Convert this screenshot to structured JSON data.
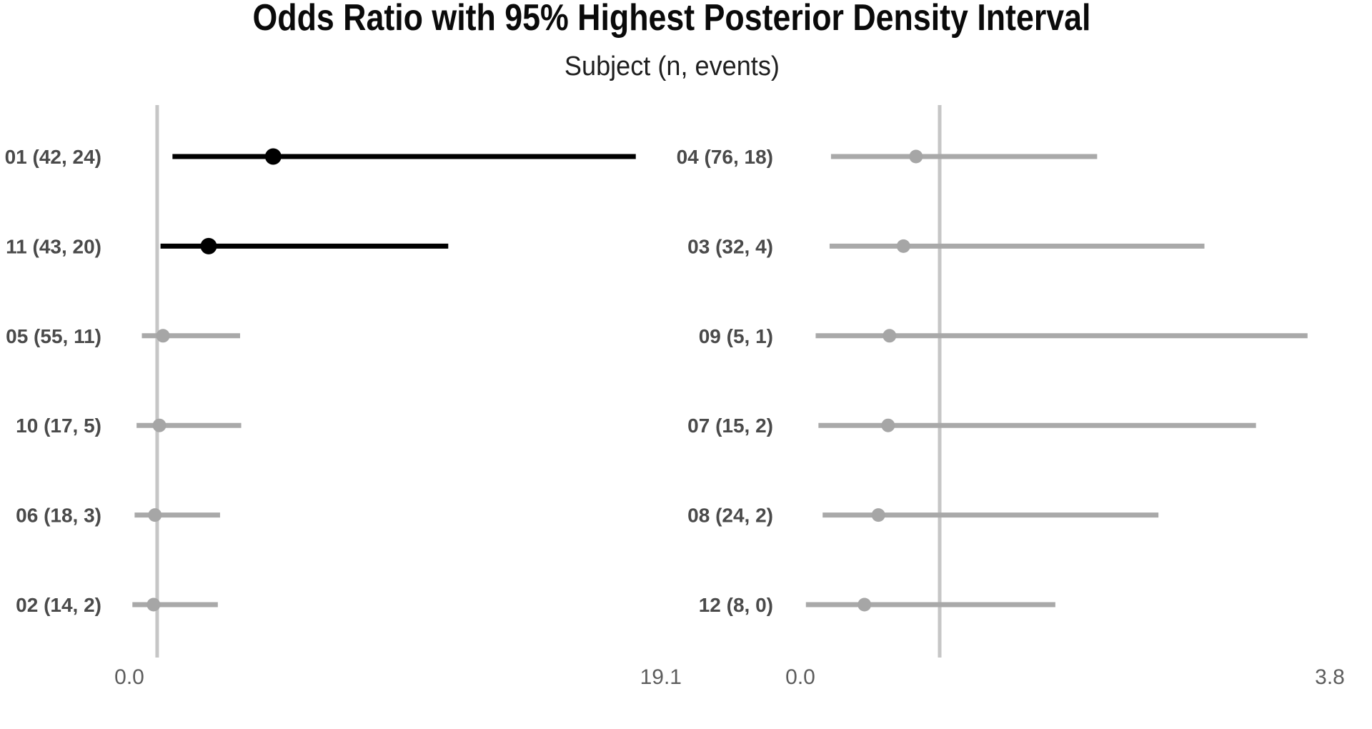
{
  "title": "Odds Ratio with 95% Highest Posterior Density Interval",
  "subtitle": "Subject (n, events)",
  "colors": {
    "background": "#ffffff",
    "emphasis_line": "#000000",
    "emphasis_dot": "#000000",
    "muted_line": "#a9a9a9",
    "muted_dot": "#a6a6a6",
    "reference_line": "#c6c6c6",
    "row_label": "#4a4a4a",
    "tick_label": "#5d5d5d",
    "title_color": "#0a0a0a"
  },
  "chart_data": {
    "type": "scatter",
    "subtype": "forest-plot",
    "title": "Odds Ratio with 95% Highest Posterior Density Interval",
    "subtitle": "Subject (n, events)",
    "grid": "off",
    "legend": "none",
    "reference_line_x": 1.0,
    "panels": [
      {
        "id": "left",
        "xlim": [
          0.0,
          19.1
        ],
        "x_ticks": [
          {
            "value": 0.0,
            "label": "0.0"
          },
          {
            "value": 19.1,
            "label": "19.1"
          }
        ],
        "subjects": [
          {
            "label": "01 (42, 24)",
            "n": 42,
            "events": 24,
            "hpd_low": 1.55,
            "or": 5.17,
            "hpd_high": 18.2,
            "emphasis": true
          },
          {
            "label": "11 (43, 20)",
            "n": 43,
            "events": 20,
            "hpd_low": 1.12,
            "or": 2.85,
            "hpd_high": 11.46,
            "emphasis": true
          },
          {
            "label": "05 (55, 11)",
            "n": 55,
            "events": 11,
            "hpd_low": 0.45,
            "or": 1.21,
            "hpd_high": 3.98,
            "emphasis": false
          },
          {
            "label": "10 (17, 5)",
            "n": 17,
            "events": 5,
            "hpd_low": 0.26,
            "or": 1.08,
            "hpd_high": 4.02,
            "emphasis": false
          },
          {
            "label": "06 (18, 3)",
            "n": 18,
            "events": 3,
            "hpd_low": 0.19,
            "or": 0.92,
            "hpd_high": 3.26,
            "emphasis": false
          },
          {
            "label": "02 (14, 2)",
            "n": 14,
            "events": 2,
            "hpd_low": 0.11,
            "or": 0.87,
            "hpd_high": 3.18,
            "emphasis": false
          }
        ]
      },
      {
        "id": "right",
        "xlim": [
          0.0,
          3.8
        ],
        "x_ticks": [
          {
            "value": 0.0,
            "label": "0.0"
          },
          {
            "value": 3.8,
            "label": "3.8"
          }
        ],
        "subjects": [
          {
            "label": "04 (76, 18)",
            "n": 76,
            "events": 18,
            "hpd_low": 0.22,
            "or": 0.83,
            "hpd_high": 2.13,
            "emphasis": false
          },
          {
            "label": "03 (32, 4)",
            "n": 32,
            "events": 4,
            "hpd_low": 0.21,
            "or": 0.74,
            "hpd_high": 2.9,
            "emphasis": false
          },
          {
            "label": "09 (5, 1)",
            "n": 5,
            "events": 1,
            "hpd_low": 0.11,
            "or": 0.64,
            "hpd_high": 3.64,
            "emphasis": false
          },
          {
            "label": "07 (15, 2)",
            "n": 15,
            "events": 2,
            "hpd_low": 0.13,
            "or": 0.63,
            "hpd_high": 3.27,
            "emphasis": false
          },
          {
            "label": "08 (24, 2)",
            "n": 24,
            "events": 2,
            "hpd_low": 0.16,
            "or": 0.56,
            "hpd_high": 2.57,
            "emphasis": false
          },
          {
            "label": "12 (8, 0)",
            "n": 8,
            "events": 0,
            "hpd_low": 0.04,
            "or": 0.46,
            "hpd_high": 1.83,
            "emphasis": false
          }
        ]
      }
    ]
  }
}
